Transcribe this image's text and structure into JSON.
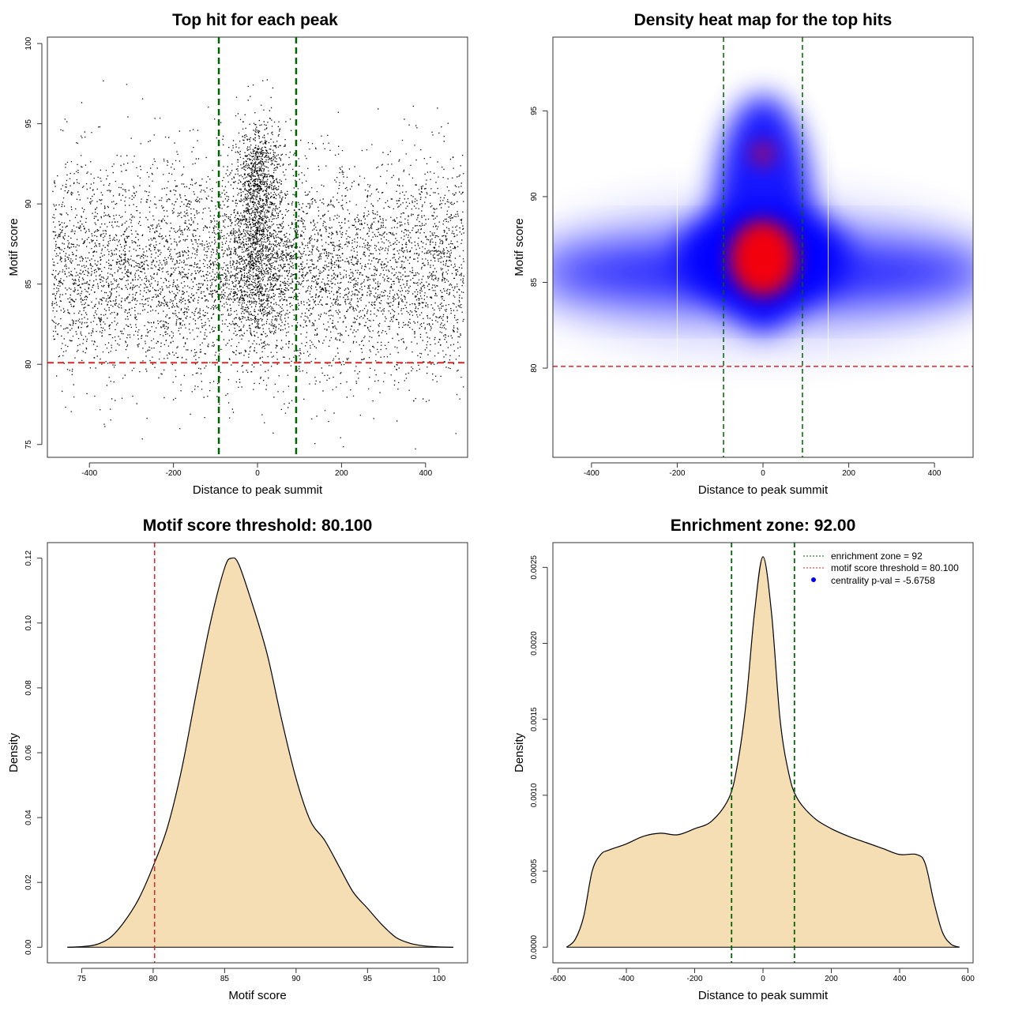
{
  "chart_data": [
    {
      "type": "scatter",
      "title": "Top hit for each peak",
      "xlabel": "Distance to peak summit",
      "ylabel": "Motif score",
      "xlim": [
        -500,
        500
      ],
      "ylim": [
        74.2,
        100.4
      ],
      "xticks": [
        -400,
        -200,
        0,
        200,
        400
      ],
      "yticks": [
        75,
        80,
        85,
        90,
        95,
        100
      ],
      "hline": {
        "y": 80.1,
        "color": "#d62728"
      },
      "vlines": [
        {
          "x": -92,
          "color": "#006400"
        },
        {
          "x": 92,
          "color": "#006400"
        }
      ],
      "distribution": {
        "x_range": [
          -490,
          490
        ],
        "components": [
          {
            "name": "background",
            "x_center": 0,
            "x_spread": 490,
            "y_mean": 85.8,
            "y_sd": 3.3
          },
          {
            "name": "central",
            "x_center": 0,
            "x_sd": 35,
            "y_mean": 88.0,
            "y_sd": 3.2
          },
          {
            "name": "central-upper",
            "x_center": 0,
            "x_sd": 25,
            "y_mean": 92.4,
            "y_sd": 1.3
          }
        ]
      }
    },
    {
      "type": "heatmap",
      "title": "Density heat map for the top hits",
      "xlabel": "Distance to peak summit",
      "ylabel": "Motif score",
      "xlim": [
        -490,
        490
      ],
      "ylim": [
        74.8,
        99.3
      ],
      "xticks": [
        -400,
        -200,
        0,
        200,
        400
      ],
      "yticks": [
        80,
        85,
        90,
        95
      ],
      "hline": {
        "y": 80.1,
        "color": "#d62728"
      },
      "vlines": [
        {
          "x": -92,
          "color": "#006400"
        },
        {
          "x": 92,
          "color": "#006400"
        }
      ],
      "separators_x": [
        -200,
        152
      ],
      "colors": [
        "#ffffff",
        "#0000ff",
        "#ff0000"
      ]
    },
    {
      "type": "area",
      "title": "Motif score threshold: 80.100",
      "xlabel": "Motif score",
      "ylabel": "Density",
      "xlim": [
        72.6,
        102.0
      ],
      "ylim": [
        -0.0048,
        0.1248
      ],
      "xticks": [
        75,
        80,
        85,
        90,
        95,
        100
      ],
      "yticks": [
        0.0,
        0.02,
        0.04,
        0.06,
        0.08,
        0.1,
        0.12
      ],
      "ytick_labels": [
        "0.00",
        "0.02",
        "0.04",
        "0.06",
        "0.08",
        "0.10",
        "0.12"
      ],
      "fill": "#f5deb3",
      "vline": {
        "x": 80.1,
        "color": "#d62728"
      },
      "points": [
        [
          74.0,
          0.0
        ],
        [
          75.0,
          0.0002
        ],
        [
          76.0,
          0.0008
        ],
        [
          77.0,
          0.003
        ],
        [
          78.0,
          0.008
        ],
        [
          79.0,
          0.015
        ],
        [
          80.0,
          0.025
        ],
        [
          81.0,
          0.037
        ],
        [
          82.0,
          0.055
        ],
        [
          83.0,
          0.078
        ],
        [
          84.0,
          0.1
        ],
        [
          85.0,
          0.117
        ],
        [
          85.5,
          0.12
        ],
        [
          86.0,
          0.118
        ],
        [
          87.0,
          0.105
        ],
        [
          88.0,
          0.09
        ],
        [
          89.0,
          0.07
        ],
        [
          90.0,
          0.052
        ],
        [
          91.0,
          0.039
        ],
        [
          92.0,
          0.033
        ],
        [
          93.0,
          0.025
        ],
        [
          94.0,
          0.017
        ],
        [
          95.0,
          0.012
        ],
        [
          96.0,
          0.007
        ],
        [
          97.0,
          0.003
        ],
        [
          98.0,
          0.0012
        ],
        [
          99.0,
          0.0004
        ],
        [
          100.0,
          0.0001
        ],
        [
          101.0,
          0.0
        ]
      ]
    },
    {
      "type": "area",
      "title": "Enrichment zone: 92.00",
      "xlabel": "Distance to peak summit",
      "ylabel": "Density",
      "xlim": [
        -615,
        615
      ],
      "ylim": [
        -0.000103,
        0.002663
      ],
      "xticks": [
        -600,
        -400,
        -200,
        0,
        200,
        400,
        600
      ],
      "yticks": [
        0.0,
        0.0005,
        0.001,
        0.0015,
        0.002,
        0.0025
      ],
      "ytick_labels": [
        "0.0000",
        "0.0005",
        "0.0010",
        "0.0015",
        "0.0020",
        "0.0025"
      ],
      "fill": "#f5deb3",
      "vlines": [
        {
          "x": -92,
          "color": "#006400"
        },
        {
          "x": 92,
          "color": "#006400"
        }
      ],
      "points": [
        [
          -575,
          0.0
        ],
        [
          -550,
          5e-05
        ],
        [
          -525,
          0.0002
        ],
        [
          -500,
          0.0005
        ],
        [
          -475,
          0.00061
        ],
        [
          -450,
          0.00064
        ],
        [
          -400,
          0.00068
        ],
        [
          -350,
          0.00073
        ],
        [
          -300,
          0.00075
        ],
        [
          -250,
          0.00074
        ],
        [
          -200,
          0.00078
        ],
        [
          -150,
          0.00083
        ],
        [
          -100,
          0.00098
        ],
        [
          -75,
          0.0012
        ],
        [
          -50,
          0.0016
        ],
        [
          -25,
          0.0022
        ],
        [
          0,
          0.00257
        ],
        [
          25,
          0.0022
        ],
        [
          50,
          0.0015
        ],
        [
          75,
          0.00115
        ],
        [
          100,
          0.00098
        ],
        [
          150,
          0.00085
        ],
        [
          200,
          0.00078
        ],
        [
          250,
          0.00073
        ],
        [
          300,
          0.00069
        ],
        [
          350,
          0.00065
        ],
        [
          400,
          0.00061
        ],
        [
          450,
          0.00061
        ],
        [
          475,
          0.00055
        ],
        [
          500,
          0.0003
        ],
        [
          525,
          0.0001
        ],
        [
          550,
          2e-05
        ],
        [
          575,
          0.0
        ]
      ],
      "legend": {
        "placement": "top-right",
        "entries": [
          {
            "label": "enrichment zone = 92",
            "color": "#006400",
            "kind": "line"
          },
          {
            "label": "motif score threshold = 80.100",
            "color": "#d62728",
            "kind": "line"
          },
          {
            "label": "centrality p-val = -5.6758",
            "color": "#0000ff",
            "kind": "point"
          }
        ]
      }
    }
  ]
}
